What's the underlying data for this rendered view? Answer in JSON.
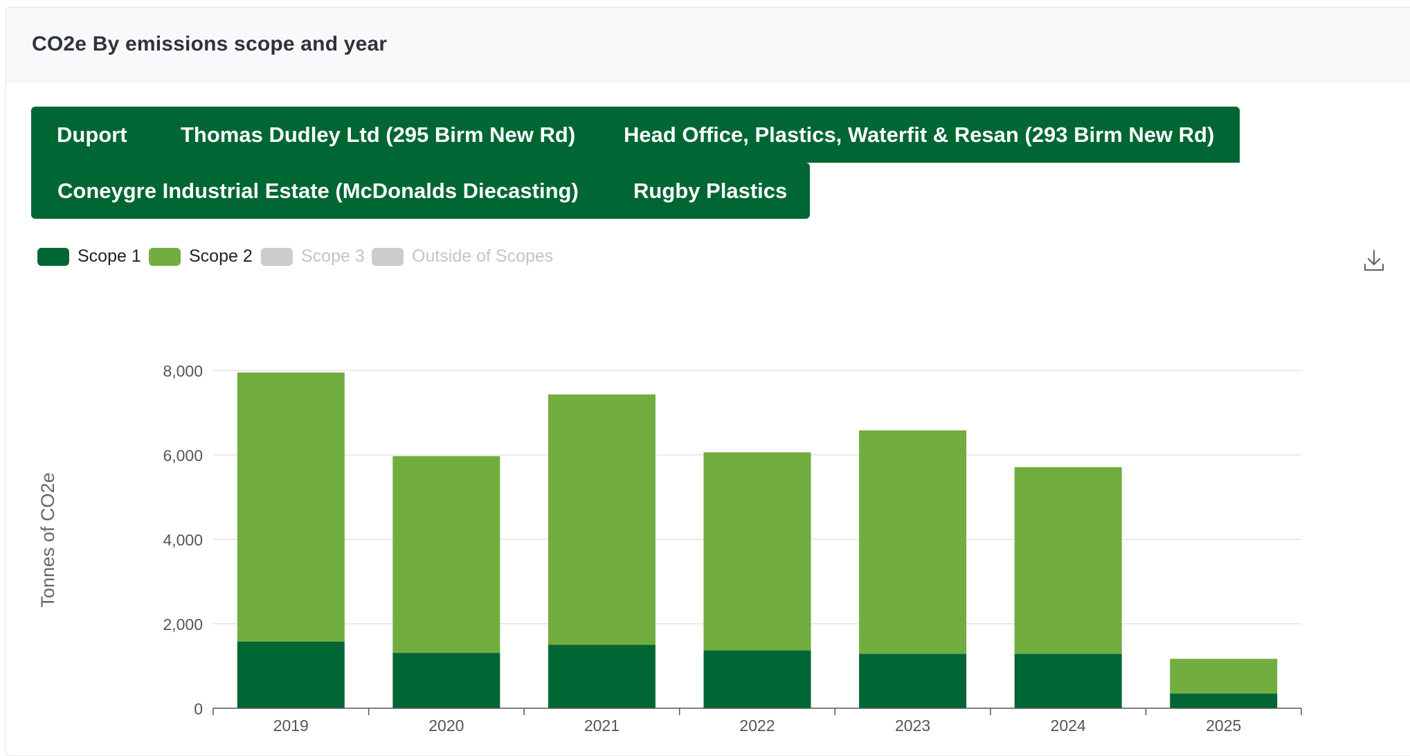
{
  "card": {
    "title": "CO2e By emissions scope and year"
  },
  "tabs": [
    "Duport",
    "Thomas Dudley Ltd (295 Birm New Rd)",
    "Head Office, Plastics, Waterfit & Resan (293 Birm New Rd)",
    "Coneygre Industrial Estate (McDonalds Diecasting)",
    "Rugby Plastics"
  ],
  "legend": [
    {
      "label": "Scope 1",
      "color": "#006633",
      "active": true
    },
    {
      "label": "Scope 2",
      "color": "#72ad3f",
      "active": true
    },
    {
      "label": "Scope 3",
      "color": "#cccccc",
      "active": false
    },
    {
      "label": "Outside of Scopes",
      "color": "#cccccc",
      "active": false
    }
  ],
  "icons": {
    "download": "download-icon"
  },
  "chart_data": {
    "type": "bar",
    "stacked": true,
    "categories": [
      "2019",
      "2020",
      "2021",
      "2022",
      "2023",
      "2024",
      "2025"
    ],
    "series": [
      {
        "name": "Scope 1",
        "color": "#006633",
        "values": [
          1580,
          1310,
          1500,
          1370,
          1290,
          1290,
          350
        ]
      },
      {
        "name": "Scope 2",
        "color": "#72ad3f",
        "values": [
          6370,
          4660,
          5930,
          4690,
          5290,
          4420,
          820
        ]
      }
    ],
    "ylabel": "Tonnes of CO2e",
    "xlabel": "",
    "ylim": [
      0,
      8000
    ],
    "yticks": [
      0,
      2000,
      4000,
      6000,
      8000
    ],
    "ytick_labels": [
      "0",
      "2,000",
      "4,000",
      "6,000",
      "8,000"
    ],
    "grid": true,
    "legend_position": "top-left"
  }
}
